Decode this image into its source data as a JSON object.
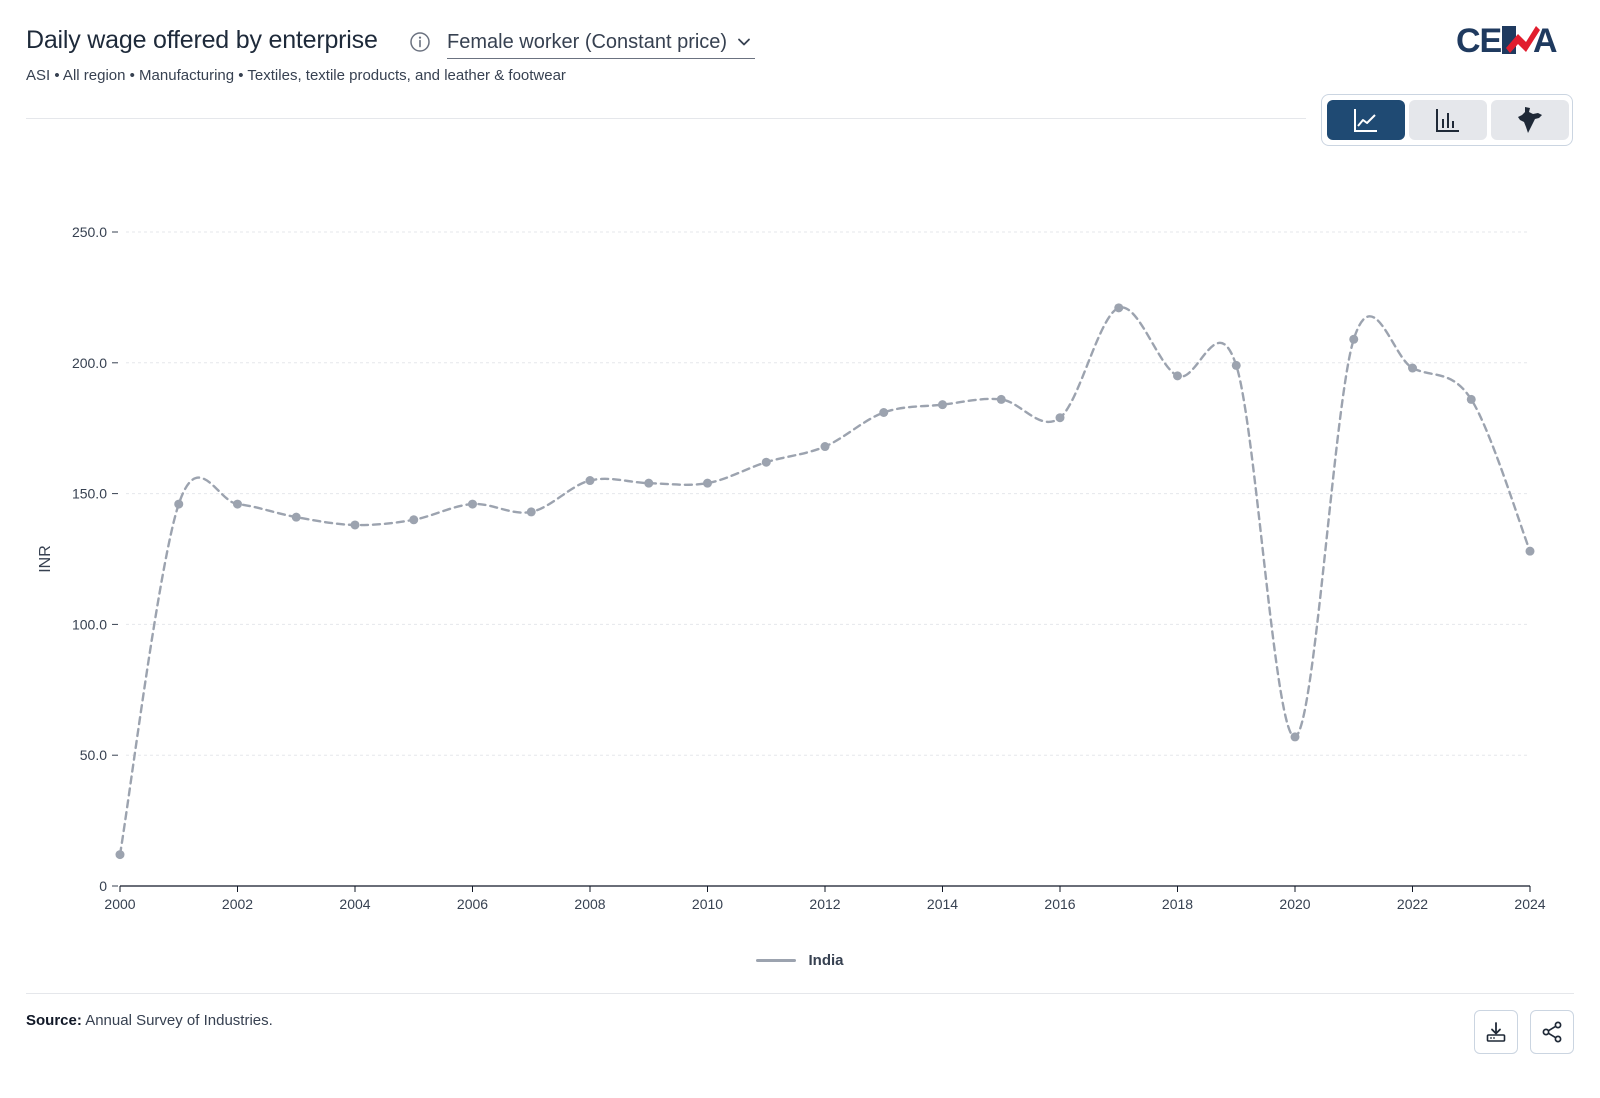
{
  "header": {
    "title": "Daily wage offered by enterprise",
    "dropdown_label": "Female worker (Constant price)",
    "subtitle": "ASI • All region • Manufacturing • Textiles, textile products, and leather & footwear",
    "logo_text": "CEDA"
  },
  "view_switch": [
    {
      "name": "line-chart",
      "icon": "line-chart-icon",
      "active": true
    },
    {
      "name": "bar-chart",
      "icon": "bar-chart-icon",
      "active": false
    },
    {
      "name": "map",
      "icon": "india-map-icon",
      "active": false
    }
  ],
  "footer": {
    "source_label": "Source:",
    "source_text": "Annual Survey of Industries.",
    "download_icon": "download-icon",
    "share_icon": "share-icon"
  },
  "colors": {
    "accent": "#1f4a73",
    "series": "#9ca3af",
    "logo_red": "#e11d2e"
  },
  "chart_data": {
    "type": "line",
    "title": "",
    "xlabel": "",
    "ylabel": "INR",
    "x": [
      2000,
      2001,
      2002,
      2003,
      2004,
      2005,
      2006,
      2007,
      2008,
      2009,
      2010,
      2011,
      2012,
      2013,
      2014,
      2015,
      2016,
      2017,
      2018,
      2019,
      2020,
      2021,
      2022,
      2023,
      2024
    ],
    "series": [
      {
        "name": "India",
        "values": [
          12,
          146,
          146,
          141,
          138,
          140,
          146,
          143,
          155,
          154,
          154,
          162,
          168,
          181,
          184,
          186,
          179,
          221,
          195,
          199,
          57,
          209,
          198,
          186,
          128
        ]
      }
    ],
    "xticks": [
      "2000",
      "2002",
      "2004",
      "2006",
      "2008",
      "2010",
      "2012",
      "2014",
      "2016",
      "2018",
      "2020",
      "2022",
      "2024"
    ],
    "yticks": [
      "0",
      "50.0",
      "100.0",
      "150.0",
      "200.0",
      "250.0"
    ],
    "ylim": [
      0,
      250
    ],
    "xlim": [
      2000,
      2024
    ],
    "grid": true,
    "line_style": "dashed",
    "legend_position": "bottom-center"
  }
}
